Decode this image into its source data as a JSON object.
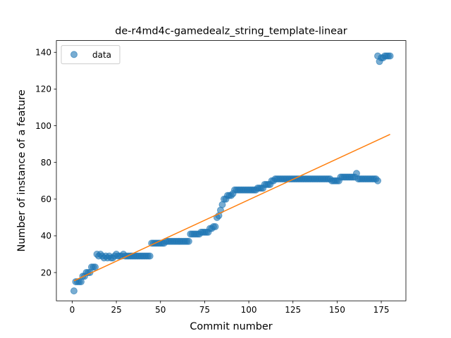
{
  "chart_data": {
    "type": "scatter",
    "title": "de-r4md4c-gamedealz_string_template-linear",
    "xlabel": "Commit number",
    "ylabel": "Number of instance of a feature",
    "xlim": [
      -8.95,
      188.95
    ],
    "ylim": [
      4.6,
      146.4
    ],
    "x_ticks": [
      0,
      25,
      50,
      75,
      100,
      125,
      150,
      175
    ],
    "y_ticks": [
      20,
      40,
      60,
      80,
      100,
      120,
      140
    ],
    "legend": {
      "placement": "top-left",
      "entries": [
        "data"
      ]
    },
    "grid": false,
    "series": [
      {
        "name": "data",
        "kind": "scatter",
        "color": "#1f77b4",
        "segments": [
          {
            "x_start": 1,
            "values": [
              10,
              15,
              15,
              15,
              15,
              18,
              18,
              20,
              20,
              20,
              23,
              23,
              23,
              30,
              29,
              30,
              29,
              28,
              29,
              28,
              29,
              28,
              28,
              29,
              30,
              29,
              29,
              29,
              30,
              29,
              29,
              29,
              29,
              29,
              29,
              29,
              29,
              29,
              29,
              29,
              29,
              29,
              29,
              29,
              36,
              36,
              36,
              36,
              36,
              36,
              36,
              36,
              37,
              37,
              37,
              37,
              37,
              37,
              37,
              37,
              37,
              37,
              37,
              37,
              37,
              37,
              41,
              41,
              41,
              41,
              41,
              41,
              42,
              42,
              42,
              42,
              42,
              44,
              44,
              45,
              45,
              50,
              51,
              54,
              57,
              60,
              60,
              62,
              62,
              62,
              63,
              65,
              65,
              65,
              65,
              65,
              65,
              65,
              65,
              65,
              65,
              65,
              65,
              65,
              66,
              66,
              66,
              66,
              68,
              68,
              68,
              68,
              70,
              70,
              71,
              71,
              71,
              71,
              71,
              71,
              71,
              71,
              71,
              71,
              71,
              71,
              71,
              71,
              71,
              71,
              71,
              71,
              71,
              71,
              71,
              71,
              71,
              71,
              71,
              71,
              71,
              71,
              71,
              71,
              71,
              71,
              70,
              70,
              70,
              70,
              70,
              72,
              72,
              72,
              72,
              72,
              72,
              72,
              72,
              72,
              74,
              71,
              71,
              71,
              71,
              71,
              71,
              71,
              71,
              71,
              71,
              71,
              70
            ]
          },
          {
            "x_start": 173,
            "values": [
              138,
              135,
              137,
              137,
              138,
              138,
              138,
              138
            ]
          }
        ]
      },
      {
        "name": "",
        "kind": "line",
        "color": "#ff7f0e",
        "x": [
          1,
          180
        ],
        "values": [
          15.5,
          95.3
        ]
      }
    ]
  }
}
